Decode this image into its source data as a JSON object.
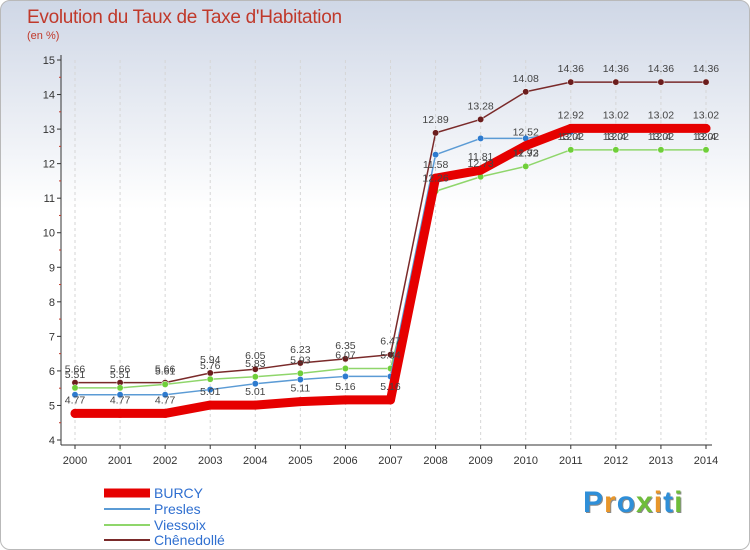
{
  "title": "Evolution du Taux de Taxe d'Habitation",
  "unit_label": "(en %)",
  "logo": {
    "letters": [
      {
        "ch": "P",
        "color": "#2f8fd8"
      },
      {
        "ch": "r",
        "color": "#e8962a"
      },
      {
        "ch": "o",
        "color": "#2f8fd8"
      },
      {
        "ch": "x",
        "color": "#6fbd3a"
      },
      {
        "ch": "i",
        "color": "#e8962a"
      },
      {
        "ch": "t",
        "color": "#2f8fd8"
      },
      {
        "ch": "i",
        "color": "#6fbd3a"
      }
    ]
  },
  "chart_data": {
    "type": "line",
    "x": [
      2000,
      2001,
      2002,
      2003,
      2004,
      2005,
      2006,
      2007,
      2008,
      2009,
      2010,
      2011,
      2012,
      2013,
      2014
    ],
    "ylim": [
      4,
      15
    ],
    "yticks": [
      4,
      5,
      6,
      7,
      8,
      9,
      10,
      11,
      12,
      13,
      14,
      15
    ],
    "legend_position": "bottom-left",
    "series": [
      {
        "name": "BURCY",
        "color": "#e60000",
        "width": 9,
        "values": [
          4.77,
          4.77,
          4.77,
          5.01,
          5.01,
          5.11,
          5.16,
          5.16,
          11.58,
          11.81,
          12.52,
          13.02,
          13.02,
          13.02,
          13.02
        ]
      },
      {
        "name": "Presles",
        "color": "#5b9bd5",
        "width": 1.5,
        "marker": "#2e7bcf",
        "values": [
          5.31,
          5.31,
          5.31,
          5.46,
          5.63,
          5.75,
          5.84,
          5.84,
          12.26,
          12.73,
          12.73,
          12.92,
          13.02,
          13.02,
          13.02
        ]
      },
      {
        "name": "Viessoix",
        "color": "#8fd66b",
        "width": 1.5,
        "marker": "#6fcf3a",
        "values": [
          5.51,
          5.51,
          5.61,
          5.76,
          5.83,
          5.93,
          6.07,
          6.07,
          11.2,
          11.62,
          11.92,
          12.4,
          12.4,
          12.4,
          12.4
        ]
      },
      {
        "name": "Chênedollé",
        "color": "#7a2a2a",
        "width": 1.5,
        "marker": "#6b1d1d",
        "values": [
          5.66,
          5.66,
          5.66,
          5.94,
          6.05,
          6.23,
          6.35,
          6.47,
          12.89,
          13.28,
          14.08,
          14.36,
          14.36,
          14.36,
          14.36
        ]
      }
    ],
    "data_labels": [
      [
        "5.66",
        "5.66",
        "5.66",
        "5.94",
        "6.05",
        "6.23",
        "6.35",
        "6.47",
        "12.89",
        "13.28",
        "14.08",
        "14.36",
        "14.36",
        "14.36",
        "14.36"
      ],
      [
        "5.51",
        "5.51",
        "5.61",
        "5.76",
        "5.83",
        "5.93",
        "6.07",
        "5.84",
        "12.26",
        "12.73",
        "12.73",
        "13.02",
        "13.02",
        "13.02",
        "13.02"
      ],
      [
        "4.77",
        "4.77",
        "4.77",
        "5.01",
        "5.01",
        "5.11",
        "5.16",
        "5.16",
        "11.58",
        "11.81",
        "12.52",
        "12.92",
        "13.02",
        "13.02",
        "13.02"
      ],
      [
        "",
        "",
        "",
        "",
        "",
        "",
        "",
        "",
        "",
        "",
        "11.92",
        "12.4",
        "12.4",
        "12.4",
        "12.4"
      ]
    ]
  }
}
